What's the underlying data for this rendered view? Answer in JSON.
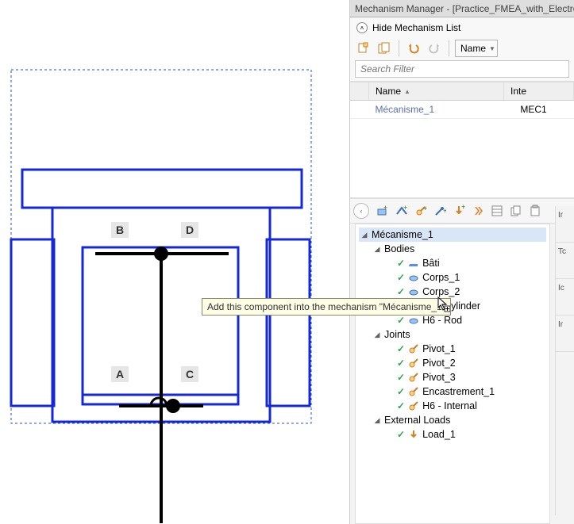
{
  "panel": {
    "title": "Mechanism Manager - [Practice_FMEA_with_Electro_Hy",
    "hide_label": "Hide Mechanism List",
    "sort_combo": "Name",
    "search_placeholder": "Search Filter",
    "columns": {
      "name": "Name",
      "code": "Inte"
    },
    "row": {
      "name": "Mécanisme_1",
      "code": "MEC1"
    }
  },
  "tooltip": "Add this component into the mechanism \"Mécanisme_1\"",
  "diagram": {
    "labels": {
      "A": "A",
      "B": "B",
      "C": "C",
      "D": "D"
    },
    "stroke": "#1628d2",
    "sel_stroke": "#1155e0",
    "sel_dash": "3,3",
    "black": "#000000"
  },
  "tree": {
    "root": "Mécanisme_1",
    "groups": {
      "bodies": "Bodies",
      "joints": "Joints",
      "loads": "External Loads"
    },
    "bodies": [
      "Bâti",
      "Corps_1",
      "Corps_2",
      "H6 - Cylinder",
      "H6 - Rod"
    ],
    "joints": [
      "Pivot_1",
      "Pivot_2",
      "Pivot_3",
      "Encastrement_1",
      "H6 - Internal"
    ],
    "loads": [
      "Load_1"
    ]
  },
  "sideprops": [
    "Ir",
    "Tc",
    "Ic",
    "Ir"
  ],
  "colors": {
    "panel_bg": "#f3f3f3",
    "title_bg": "#dedede",
    "accent": "#5a6fae"
  }
}
